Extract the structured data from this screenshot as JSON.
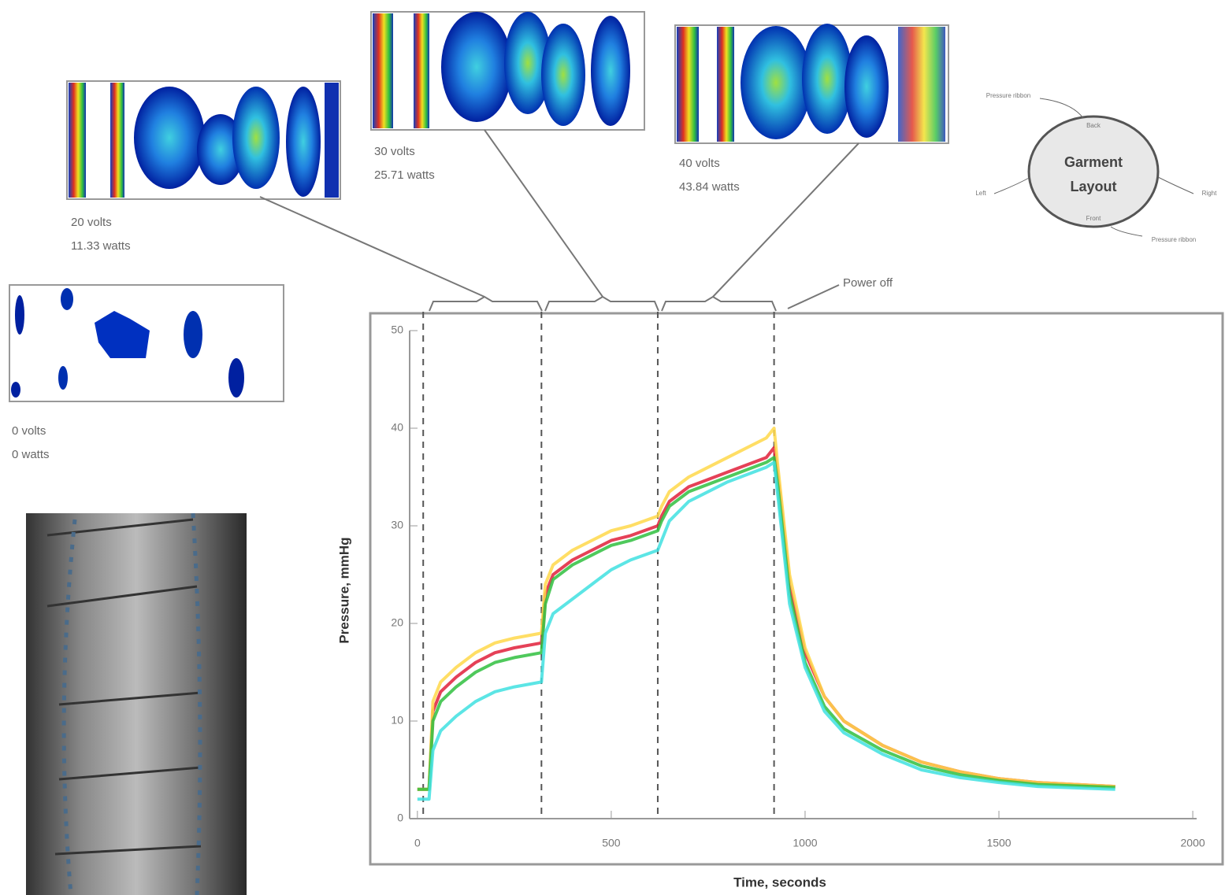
{
  "chart_data": {
    "type": "line",
    "x_label": "Time, seconds",
    "y_label": "Pressure, mmHg",
    "xlim": [
      -20,
      2010
    ],
    "ylim": [
      0,
      50
    ],
    "xticks": [
      0,
      500,
      1000,
      1500,
      2000
    ],
    "yticks": [
      0,
      10,
      20,
      30,
      40,
      50
    ],
    "phase_times": [
      15,
      320,
      620,
      920
    ],
    "annotations": [
      "Power off"
    ],
    "x": [
      0,
      30,
      40,
      60,
      100,
      150,
      200,
      250,
      320,
      330,
      350,
      400,
      450,
      500,
      550,
      620,
      630,
      650,
      700,
      800,
      900,
      920,
      930,
      960,
      1000,
      1050,
      1100,
      1200,
      1300,
      1400,
      1500,
      1600,
      1800
    ],
    "series": [
      {
        "color": "#e0203a",
        "values": [
          3,
          3,
          11,
          13,
          14.5,
          16,
          17,
          17.5,
          18,
          23,
          25,
          26.5,
          27.5,
          28.5,
          29,
          30,
          31,
          32.5,
          34,
          35.5,
          37,
          38,
          35,
          24,
          17,
          12.5,
          10,
          7.5,
          5.8,
          4.8,
          4.1,
          3.7,
          3.3
        ]
      },
      {
        "color": "#ffd84a",
        "values": [
          3,
          3,
          12,
          14,
          15.5,
          17,
          18,
          18.5,
          19,
          24,
          26,
          27.5,
          28.5,
          29.5,
          30,
          31,
          32,
          33.5,
          35,
          37,
          39,
          40,
          36,
          25,
          17.5,
          12.5,
          10,
          7.5,
          5.8,
          4.8,
          4.1,
          3.7,
          3.3
        ]
      },
      {
        "color": "#30c040",
        "values": [
          3,
          3,
          10,
          12,
          13.5,
          15,
          16,
          16.5,
          17,
          22,
          24.5,
          26,
          27,
          28,
          28.5,
          29.5,
          30.5,
          32,
          33.5,
          35,
          36.5,
          37,
          34,
          23,
          16,
          11.5,
          9.2,
          7,
          5.4,
          4.5,
          3.9,
          3.5,
          3.2
        ]
      },
      {
        "color": "#40e0e0",
        "values": [
          2,
          2,
          7,
          9,
          10.5,
          12,
          13,
          13.5,
          14,
          19,
          21,
          22.5,
          24,
          25.5,
          26.5,
          27.5,
          28.5,
          30.5,
          32.5,
          34.5,
          36,
          36.5,
          33,
          22,
          15.5,
          11,
          8.8,
          6.6,
          5,
          4.2,
          3.7,
          3.3,
          3
        ]
      }
    ]
  },
  "panels": [
    {
      "volts": "0 volts",
      "watts": "0 watts"
    },
    {
      "volts": "20 volts",
      "watts": "11.33 watts"
    },
    {
      "volts": "30 volts",
      "watts": "25.71 watts"
    },
    {
      "volts": "40 volts",
      "watts": "43.84 watts"
    }
  ],
  "garment": {
    "title_1": "Garment",
    "title_2": "Layout",
    "back": "Back",
    "front": "Front",
    "left": "Left",
    "right": "Right",
    "ribbon_top": "Pressure ribbon",
    "ribbon_bottom": "Pressure ribbon"
  }
}
